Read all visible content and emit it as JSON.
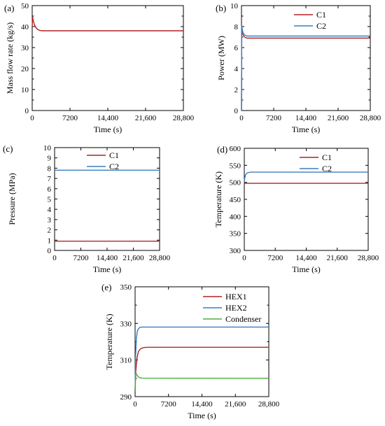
{
  "chart_data": [
    {
      "label": "(a)",
      "type": "line",
      "xlabel": "Time (s)",
      "ylabel": "Mass flow rate (kg/s)",
      "xlim": [
        0,
        28800
      ],
      "ylim": [
        0,
        50
      ],
      "xticks": [
        0,
        7200,
        14400,
        21600,
        28800
      ],
      "xtick_labels": [
        "0",
        "7200",
        "14,400",
        "21,600",
        "28,800"
      ],
      "yticks": [
        0,
        5,
        10,
        15,
        20,
        25,
        30,
        35,
        40,
        45,
        50
      ],
      "ytick_labels": [
        "0",
        "",
        "10",
        "",
        "20",
        "",
        "30",
        "",
        "40",
        "",
        "50"
      ],
      "legend": null,
      "series": [
        {
          "name": "",
          "color": "#b22222",
          "x": [
            0,
            80,
            200,
            400,
            700,
            1000,
            1400,
            2000,
            3000,
            28800
          ],
          "y": [
            40.0,
            44.5,
            43.0,
            41.0,
            39.5,
            38.7,
            38.2,
            38.0,
            38.0,
            38.0
          ]
        }
      ]
    },
    {
      "label": "(b)",
      "type": "line",
      "xlabel": "Time (s)",
      "ylabel": "Power (MW)",
      "xlim": [
        0,
        28800
      ],
      "ylim": [
        0,
        10
      ],
      "xticks": [
        0,
        7200,
        14400,
        21600,
        28800
      ],
      "xtick_labels": [
        "0",
        "7200",
        "14,400",
        "21,600",
        "28,800"
      ],
      "yticks": [
        0,
        1,
        2,
        3,
        4,
        5,
        6,
        7,
        8,
        9,
        10
      ],
      "ytick_labels": [
        "0",
        "",
        "2",
        "",
        "4",
        "",
        "6",
        "",
        "8",
        "",
        "10"
      ],
      "legend": "top-center",
      "series": [
        {
          "name": "C1",
          "color": "#b22222",
          "x": [
            0,
            60,
            150,
            350,
            700,
            1200,
            2000,
            3000,
            28800
          ],
          "y": [
            0.0,
            8.0,
            7.6,
            7.2,
            7.0,
            6.9,
            6.9,
            6.9,
            6.9
          ]
        },
        {
          "name": "C2",
          "color": "#3b7fbf",
          "x": [
            0,
            60,
            150,
            350,
            700,
            1200,
            2000,
            3000,
            28800
          ],
          "y": [
            0.0,
            8.1,
            7.8,
            7.4,
            7.2,
            7.1,
            7.1,
            7.1,
            7.1
          ]
        }
      ]
    },
    {
      "label": "(c)",
      "type": "line",
      "xlabel": "Time (s)",
      "ylabel": "Pressure (MPa)",
      "xlim": [
        0,
        28800
      ],
      "ylim": [
        0,
        10
      ],
      "xticks": [
        0,
        7200,
        14400,
        21600,
        28800
      ],
      "xtick_labels": [
        "0",
        "7200",
        "14,400",
        "21,600",
        "28,800"
      ],
      "yticks": [
        0,
        1,
        2,
        3,
        4,
        5,
        6,
        7,
        8,
        9,
        10
      ],
      "ytick_labels": [
        "0",
        "1",
        "2",
        "3",
        "4",
        "5",
        "6",
        "7",
        "8",
        "9",
        "10"
      ],
      "legend": "top-left",
      "series": [
        {
          "name": "C1",
          "color": "#b22222",
          "x": [
            0,
            28800
          ],
          "y": [
            0.9,
            0.9
          ]
        },
        {
          "name": "C2",
          "color": "#3b7fbf",
          "x": [
            0,
            28800
          ],
          "y": [
            7.8,
            7.8
          ]
        }
      ]
    },
    {
      "label": "(d)",
      "type": "line",
      "xlabel": "Time (s)",
      "ylabel": "Temperature (K)",
      "xlim": [
        0,
        28800
      ],
      "ylim": [
        300,
        600
      ],
      "xticks": [
        0,
        7200,
        14400,
        21600,
        28800
      ],
      "xtick_labels": [
        "0",
        "7200",
        "14,400",
        "21,600",
        "28,800"
      ],
      "yticks": [
        300,
        350,
        400,
        450,
        500,
        550,
        600
      ],
      "ytick_labels": [
        "300",
        "350",
        "400",
        "450",
        "500",
        "550",
        "600"
      ],
      "legend": "top-center",
      "series": [
        {
          "name": "C1",
          "color": "#b22222",
          "x": [
            0,
            50,
            200,
            500,
            1000,
            2000,
            28800
          ],
          "y": [
            493,
            496,
            497,
            497,
            497,
            497,
            497
          ]
        },
        {
          "name": "C2",
          "color": "#3b7fbf",
          "x": [
            0,
            100,
            300,
            600,
            1000,
            1600,
            2500,
            28800
          ],
          "y": [
            500,
            512,
            522,
            527,
            529,
            530,
            530,
            530
          ]
        }
      ]
    },
    {
      "label": "(e)",
      "type": "line",
      "xlabel": "Time (s)",
      "ylabel": "Temperature (K)",
      "xlim": [
        0,
        28800
      ],
      "ylim": [
        290,
        350
      ],
      "xticks": [
        0,
        7200,
        14400,
        21600,
        28800
      ],
      "xtick_labels": [
        "0",
        "7200",
        "14,400",
        "21,600",
        "28,800"
      ],
      "yticks": [
        290,
        300,
        310,
        320,
        330,
        340,
        350
      ],
      "ytick_labels": [
        "290",
        "",
        "310",
        "",
        "330",
        "",
        "350"
      ],
      "legend": "top-right",
      "series": [
        {
          "name": "HEX1",
          "color": "#b22222",
          "x": [
            0,
            150,
            400,
            700,
            1100,
            1600,
            2200,
            3000,
            28800
          ],
          "y": [
            293,
            304,
            311,
            314.5,
            316,
            316.6,
            316.9,
            317,
            317
          ]
        },
        {
          "name": "HEX2",
          "color": "#3b7fbf",
          "x": [
            0,
            100,
            250,
            450,
            700,
            1000,
            1500,
            2200,
            28800
          ],
          "y": [
            293,
            312,
            321,
            325.5,
            327,
            327.8,
            328,
            328,
            328
          ]
        },
        {
          "name": "Condenser",
          "color": "#4caf3f",
          "x": [
            0,
            100,
            250,
            450,
            700,
            1000,
            1500,
            28800
          ],
          "y": [
            293,
            302,
            302.5,
            301.5,
            300.8,
            300.3,
            300.1,
            300
          ]
        }
      ]
    }
  ]
}
